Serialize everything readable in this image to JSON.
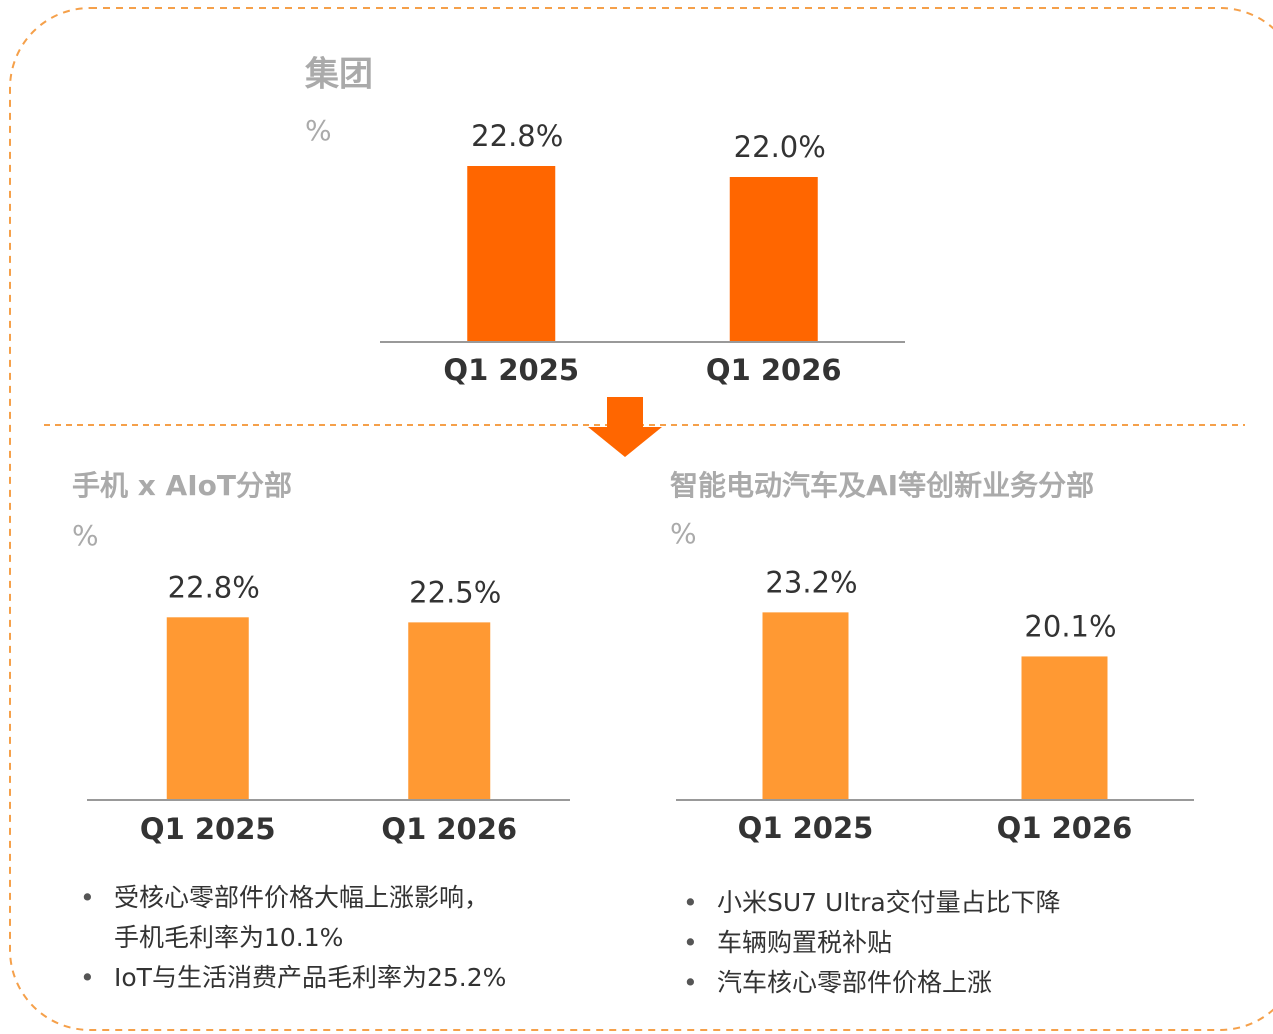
{
  "chart_data": [
    {
      "type": "bar",
      "title": "集团",
      "subtitle": "%",
      "categories": [
        "Q1 2025",
        "Q1 2026"
      ],
      "values": [
        22.8,
        22.0
      ],
      "value_labels": [
        "22.8%",
        "22.0%"
      ],
      "color": "#ff6600",
      "ylim": [
        10,
        24
      ]
    },
    {
      "type": "bar",
      "title": "手机 x AIoT分部",
      "subtitle": "%",
      "categories": [
        "Q1 2025",
        "Q1 2026"
      ],
      "values": [
        22.8,
        22.5
      ],
      "value_labels": [
        "22.8%",
        "22.5%"
      ],
      "color": "#ff9933",
      "ylim": [
        12,
        24
      ],
      "annotations": [
        "受核心零部件价格大幅上涨影响，\n手机毛利率为10.1%",
        "IoT与生活消费产品毛利率为25.2%"
      ]
    },
    {
      "type": "bar",
      "title": "智能电动汽车及AI等创新业务分部",
      "subtitle": "%",
      "categories": [
        "Q1 2025",
        "Q1 2026"
      ],
      "values": [
        23.2,
        20.1
      ],
      "value_labels": [
        "23.2%",
        "20.1%"
      ],
      "color": "#ff9933",
      "ylim": [
        10,
        24
      ],
      "annotations": [
        "小米SU7 Ultra交付量占比下降",
        "车辆购置税补贴",
        "汽车核心零部件价格上涨"
      ]
    }
  ]
}
